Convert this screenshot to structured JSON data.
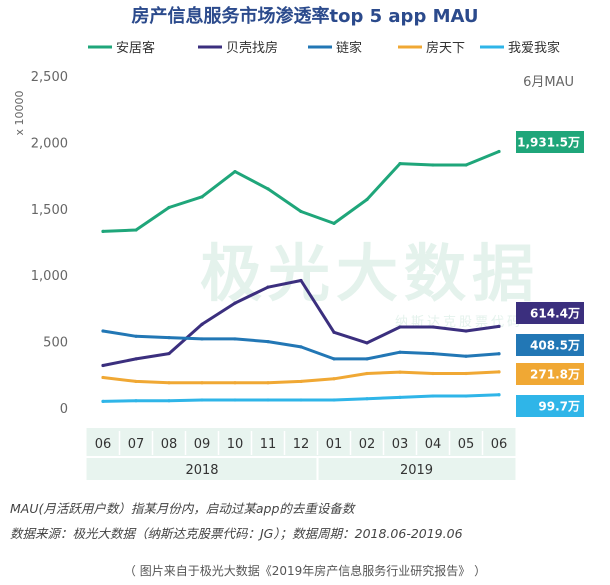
{
  "chart_data": {
    "type": "line",
    "title": "房产信息服务市场渗透率top 5 app MAU",
    "ylabel": "x 10000",
    "unit_label": "6月MAU",
    "ylim": [
      0,
      2500
    ],
    "yticks": [
      0,
      500,
      1000,
      1500,
      2000,
      2500
    ],
    "ytick_labels": [
      "0",
      "500",
      "1,000",
      "1,500",
      "2,000",
      "2,500"
    ],
    "categories": [
      "06",
      "07",
      "08",
      "09",
      "10",
      "11",
      "12",
      "01",
      "02",
      "03",
      "04",
      "05",
      "06"
    ],
    "years": [
      {
        "label": "2018",
        "span": 7
      },
      {
        "label": "2019",
        "span": 6
      }
    ],
    "series": [
      {
        "name": "安居客",
        "color": "#1fa67a",
        "values": [
          1330,
          1340,
          1510,
          1590,
          1780,
          1650,
          1480,
          1390,
          1570,
          1840,
          1830,
          1830,
          1931.5
        ],
        "end_label": "1,931.5万"
      },
      {
        "name": "贝壳找房",
        "color": "#3b2f7e",
        "values": [
          320,
          370,
          410,
          630,
          790,
          910,
          960,
          570,
          490,
          610,
          610,
          580,
          614.4
        ],
        "end_label": "614.4万"
      },
      {
        "name": "链家",
        "color": "#2277b5",
        "values": [
          580,
          540,
          530,
          520,
          520,
          500,
          460,
          370,
          370,
          420,
          410,
          390,
          408.5
        ],
        "end_label": "408.5万"
      },
      {
        "name": "房天下",
        "color": "#f0a834",
        "values": [
          230,
          200,
          190,
          190,
          190,
          190,
          200,
          220,
          260,
          270,
          260,
          260,
          271.8
        ],
        "end_label": "271.8万"
      },
      {
        "name": "我爱我家",
        "color": "#2fb5e8",
        "values": [
          50,
          55,
          55,
          60,
          60,
          60,
          60,
          60,
          70,
          80,
          90,
          90,
          99.7
        ],
        "end_label": "99.7万"
      }
    ]
  },
  "watermark": {
    "main": "极光大数据",
    "sub": "纳斯达克股票代码"
  },
  "notes": [
    "MAU(月活跃用户数）指某月份内，启动过某app的去重设备数",
    "数据来源：极光大数据（纳斯达克股票代码：JG）；数据周期：2018.06-2019.06"
  ],
  "caption": "（ 图片来自于极光大数据《2019年房产信息服务行业研究报告》 ）"
}
